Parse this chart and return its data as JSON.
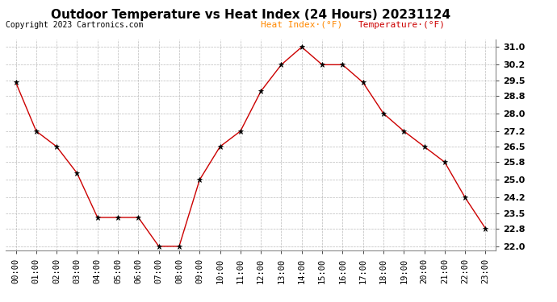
{
  "title": "Outdoor Temperature vs Heat Index (24 Hours) 20231124",
  "copyright": "Copyright 2023 Cartronics.com",
  "legend_heat_index": "Heat Index·(°F)",
  "legend_temperature": "Temperature·(°F)",
  "hours": [
    "00:00",
    "01:00",
    "02:00",
    "03:00",
    "04:00",
    "05:00",
    "06:00",
    "07:00",
    "08:00",
    "09:00",
    "10:00",
    "11:00",
    "12:00",
    "13:00",
    "14:00",
    "15:00",
    "16:00",
    "17:00",
    "18:00",
    "19:00",
    "20:00",
    "21:00",
    "22:00",
    "23:00"
  ],
  "temperature": [
    29.4,
    27.2,
    26.5,
    25.3,
    23.3,
    23.3,
    23.3,
    22.0,
    22.0,
    25.0,
    26.5,
    27.2,
    29.0,
    30.2,
    31.0,
    30.2,
    30.2,
    29.4,
    28.0,
    27.2,
    26.5,
    25.8,
    24.2,
    22.8
  ],
  "line_color": "#cc0000",
  "marker": "*",
  "marker_color": "#000000",
  "ylim_min": 21.8,
  "ylim_max": 31.35,
  "yticks": [
    22.0,
    22.8,
    23.5,
    24.2,
    25.0,
    25.8,
    26.5,
    27.2,
    28.0,
    28.8,
    29.5,
    30.2,
    31.0
  ],
  "bg_color": "#ffffff",
  "plot_bg_color": "#ffffff",
  "grid_color": "#aaaaaa",
  "title_fontsize": 11,
  "copyright_fontsize": 7,
  "legend_fontsize": 8,
  "legend_heat_color": "#ff8800",
  "legend_temp_color": "#cc0000",
  "tick_fontsize": 7.5
}
